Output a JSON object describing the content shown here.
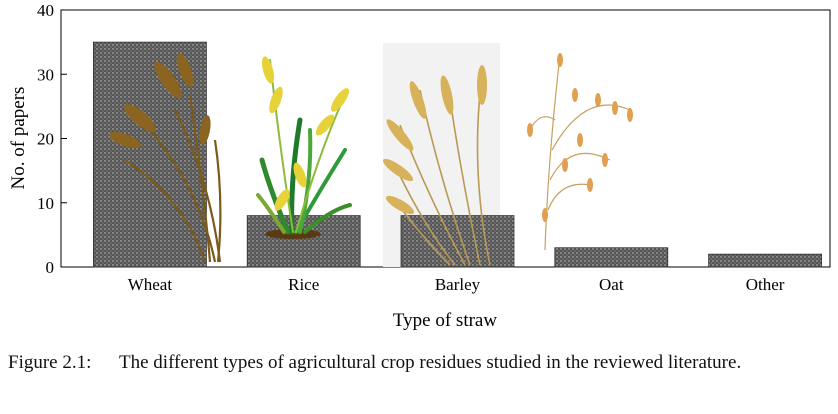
{
  "chart_data": {
    "type": "bar",
    "categories": [
      "Wheat",
      "Rice",
      "Barley",
      "Oat",
      "Other"
    ],
    "values": [
      35,
      8,
      8,
      3,
      2
    ],
    "xlabel": "Type of straw",
    "ylabel": "No. of papers",
    "ylim": [
      0,
      40
    ],
    "yticks": [
      0,
      10,
      20,
      30,
      40
    ],
    "grid": false,
    "bar_color": "#5a5a5a",
    "bar_pattern": "dotted"
  },
  "illustrations": [
    "wheat-straw",
    "rice-plant",
    "barley-ears",
    "oat-panicle"
  ],
  "caption": {
    "label": "Figure 2.1:",
    "text": "The different types of agricultural crop residues studied in the reviewed literature."
  }
}
